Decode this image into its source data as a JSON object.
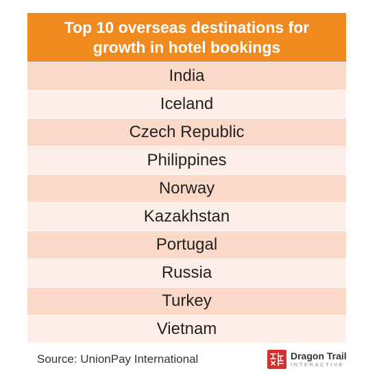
{
  "chart_data": {
    "type": "table",
    "title_lines": [
      "Top 10 overseas destinations for",
      "growth in hotel bookings"
    ],
    "rows": [
      "India",
      "Iceland",
      "Czech Republic",
      "Philippines",
      "Norway",
      "Kazakhstan",
      "Portugal",
      "Russia",
      "Turkey",
      "Vietnam"
    ]
  },
  "footer": {
    "source": "Source: UnionPay International"
  },
  "logo": {
    "name": "Dragon Trail",
    "tagline": "INTERACTIVE"
  },
  "colors": {
    "header": "#f0891e",
    "row_odd": "#fbd9c9",
    "row_even": "#fdeee7",
    "seal": "#d32f2f"
  }
}
